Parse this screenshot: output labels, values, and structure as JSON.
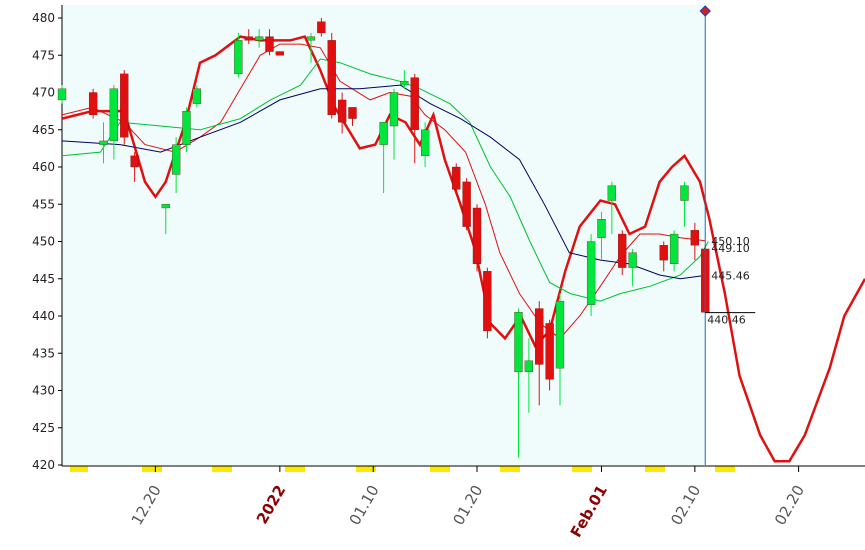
{
  "chart_data": {
    "type": "candlestick",
    "ylim": [
      420,
      480
    ],
    "yticks": [
      420,
      425,
      430,
      435,
      440,
      445,
      450,
      455,
      460,
      465,
      470,
      475,
      480
    ],
    "xlim": [
      -9,
      68.4
    ],
    "xticks": [
      {
        "value": 0,
        "label": "12.20"
      },
      {
        "value": 12,
        "label": "2022",
        "highlight": true
      },
      {
        "value": 21,
        "label": "01.10"
      },
      {
        "value": 31,
        "label": "01.20"
      },
      {
        "value": 43,
        "label": "Feb.01",
        "highlight": true
      },
      {
        "value": 52,
        "label": "02.10"
      },
      {
        "value": 62,
        "label": "02.20"
      }
    ],
    "up_color": "#00e63c",
    "down_color": "#e01010",
    "candles": {
      "x": [
        -9,
        -6,
        -5,
        -4,
        -3,
        -2,
        1,
        2,
        3,
        4,
        8,
        9,
        10,
        11,
        12,
        15,
        16,
        17,
        18,
        19,
        22,
        23,
        24,
        25,
        26,
        29,
        30,
        31,
        32,
        35,
        36,
        37,
        38,
        39,
        42,
        43,
        44,
        45,
        46,
        49,
        50,
        51,
        52,
        53
      ],
      "open": [
        469,
        470,
        463,
        463.5,
        472.5,
        461.5,
        454.5,
        459,
        463,
        468.5,
        472.5,
        477.5,
        477,
        477.5,
        475.5,
        477,
        479.5,
        477,
        469,
        468,
        463,
        465.5,
        471,
        472,
        461.5,
        460,
        458,
        454.5,
        446,
        432.5,
        432.5,
        441,
        439,
        433,
        441.5,
        450.5,
        455.5,
        451,
        446.5,
        449.5,
        447,
        455.5,
        451.5,
        449
      ],
      "high": [
        471,
        470.5,
        466,
        471,
        473,
        462,
        455,
        464,
        468,
        471,
        478,
        478.5,
        478.5,
        478.5,
        475.5,
        478,
        480,
        478,
        470,
        468,
        466,
        470.5,
        473,
        472.5,
        466,
        460.5,
        458.5,
        455,
        446.5,
        441,
        437,
        442,
        439.5,
        443,
        451,
        454,
        458,
        451.5,
        449,
        450,
        451.5,
        458,
        452.5,
        449.5
      ],
      "low": [
        468.5,
        466.5,
        460.5,
        461,
        463,
        458,
        451,
        456.5,
        462,
        468,
        472,
        476.5,
        476,
        475,
        475,
        474,
        477.5,
        466.5,
        464.5,
        465.5,
        456.5,
        461,
        470.5,
        460.5,
        460,
        456.5,
        451.5,
        446,
        437,
        421,
        427,
        428,
        430,
        428,
        440,
        447.5,
        451,
        445.5,
        444,
        446,
        446,
        452,
        447.5,
        440.5
      ],
      "close": [
        470.5,
        467,
        463.5,
        470.5,
        464,
        460,
        455,
        463,
        467.5,
        470.5,
        477,
        477,
        477.5,
        475.5,
        475,
        477.5,
        478,
        467,
        466,
        466.5,
        466,
        470,
        471.5,
        465,
        465,
        457,
        452,
        447,
        438,
        440.5,
        434,
        433.5,
        431.5,
        442,
        450,
        453,
        457.5,
        446.5,
        448.5,
        447.5,
        451,
        457.5,
        449.5,
        440.5
      ]
    },
    "series": [
      {
        "color": "#e01010",
        "width": 2.5,
        "x": [
          -9,
          -6.1,
          -3,
          -1,
          0,
          1,
          2.9,
          4.3,
          5.8,
          8.2,
          10.1,
          13,
          14.4,
          15.9,
          17.3,
          19.7,
          21.2,
          22.6,
          24.1,
          25.5,
          26.8,
          27.9,
          29.4,
          30.8,
          32.3,
          33.7,
          35.2,
          36.6,
          38,
          39.5,
          40.9,
          42.9,
          44.3,
          45.7,
          47.2,
          48.6,
          49.8,
          51,
          52.5,
          53.4,
          54.9,
          56.3,
          58.3,
          59.7,
          61.1,
          62.6,
          65,
          66.4,
          68.4
        ],
        "values": [
          466.5,
          467.5,
          467.5,
          458,
          456,
          458,
          466,
          474,
          475,
          477.5,
          477,
          477,
          477.5,
          473,
          468,
          462.5,
          463,
          467,
          466,
          463,
          467,
          461,
          455,
          449,
          439,
          437,
          440,
          436,
          438,
          446,
          452,
          455.5,
          455,
          451,
          452,
          458,
          460,
          461.5,
          458,
          453,
          443,
          432,
          424,
          420.5,
          420.5,
          424,
          433,
          440,
          445
        ]
      },
      {
        "color": "#e01010",
        "width": 1,
        "x": [
          -9,
          -6.1,
          -3,
          -1,
          1.9,
          4.3,
          6.3,
          8.2,
          10.1,
          12,
          14,
          15.9,
          17.8,
          20.7,
          22.6,
          24.6,
          26,
          27.9,
          29.9,
          31.8,
          33.2,
          35.1,
          37.1,
          39,
          40.9,
          42.9,
          44.8,
          46.7,
          48.6,
          50.6,
          53
        ],
        "values": [
          467,
          468,
          466,
          463,
          462,
          464,
          466,
          470.5,
          475,
          476.5,
          476.5,
          476,
          471.5,
          469,
          470,
          469.5,
          467,
          465,
          462,
          455,
          448.5,
          443,
          439,
          437,
          440,
          444,
          448,
          451,
          451,
          450.5,
          450.1
        ]
      },
      {
        "color": "#00c030",
        "width": 1,
        "x": [
          -9,
          -5.3,
          -3.4,
          0.5,
          4.3,
          8.2,
          11.1,
          14,
          15.9,
          17.8,
          20.7,
          23.6,
          25.5,
          28.4,
          30.3,
          32.3,
          34.2,
          36.1,
          38,
          40,
          42.9,
          44.8,
          47.7,
          50.6,
          52.5,
          53.3
        ],
        "values": [
          461.5,
          462,
          466,
          465.5,
          465,
          466.5,
          469,
          471,
          474.5,
          474,
          472.5,
          471.5,
          470.5,
          468.5,
          466,
          460,
          456,
          450,
          444.5,
          443,
          442,
          443,
          444,
          445.5,
          448,
          450
        ]
      },
      {
        "color": "#000060",
        "width": 1,
        "x": [
          -9,
          -3.4,
          0.5,
          4.3,
          8.2,
          12,
          15.9,
          19.7,
          23.6,
          26.5,
          29.4,
          32.3,
          35.1,
          37.5,
          39.9,
          42.9,
          45.7,
          48.6,
          50.6,
          53.3
        ],
        "values": [
          463.5,
          463,
          462,
          464,
          466,
          469,
          470.5,
          470.5,
          471,
          468.5,
          466.5,
          464,
          461,
          455,
          448.5,
          447.5,
          447,
          445.5,
          445,
          445.5
        ]
      }
    ],
    "annotations": [
      {
        "value": 450.1,
        "label": "450.10"
      },
      {
        "value": 449.1,
        "label": "449.10"
      },
      {
        "value": 445.46,
        "label": "445.46"
      },
      {
        "value": 440.46,
        "label": "440.46"
      }
    ]
  }
}
